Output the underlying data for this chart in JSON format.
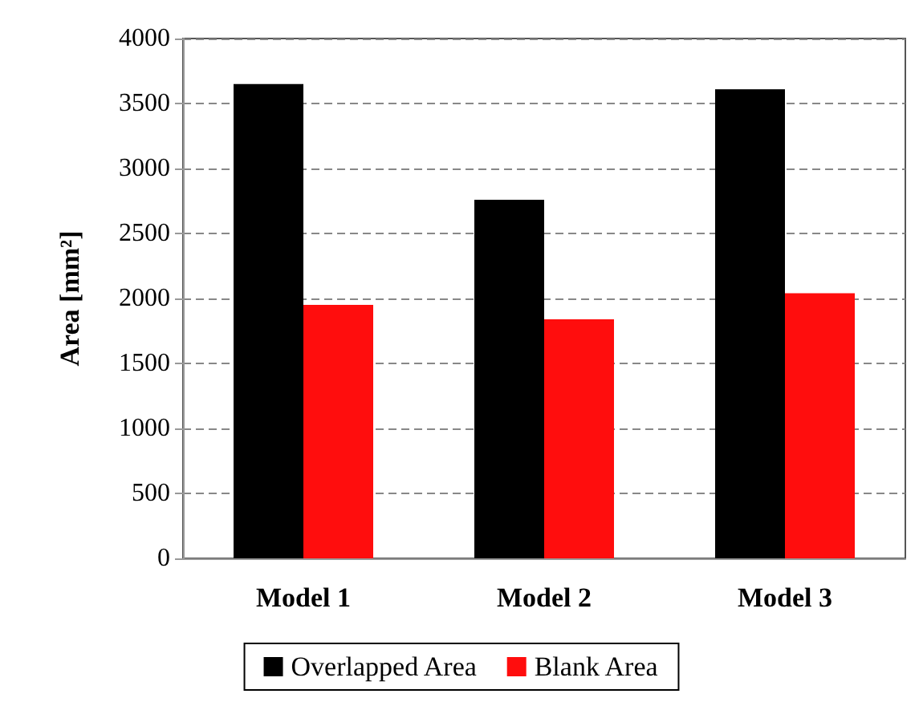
{
  "chart_data": {
    "type": "bar",
    "ylabel": "Area [mm²]",
    "categories": [
      "Model 1",
      "Model 2",
      "Model 3"
    ],
    "series": [
      {
        "name": "Overlapped Area",
        "color": "#000000",
        "values": [
          3650,
          2760,
          3610
        ]
      },
      {
        "name": "Blank Area",
        "color": "#ff0d0d",
        "values": [
          1950,
          1840,
          2040
        ]
      }
    ],
    "ylim": [
      0,
      4000
    ],
    "yticks": [
      0,
      500,
      1000,
      1500,
      2000,
      2500,
      3000,
      3500,
      4000
    ],
    "grid": "y",
    "legend": "bottom"
  }
}
